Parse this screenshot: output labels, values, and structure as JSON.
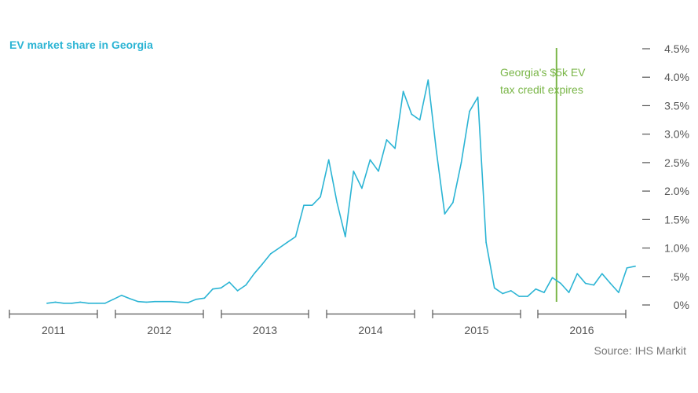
{
  "chart_data": {
    "type": "line",
    "title": "EV market share in Georgia",
    "source": "Source: IHS Markit",
    "ylim": [
      0,
      4.5
    ],
    "y_ticks": [
      {
        "value": 4.5,
        "label": "4.5%"
      },
      {
        "value": 4.0,
        "label": "4.0%"
      },
      {
        "value": 3.5,
        "label": "3.5%"
      },
      {
        "value": 3.0,
        "label": "3.0%"
      },
      {
        "value": 2.5,
        "label": "2.5%"
      },
      {
        "value": 2.0,
        "label": "2.0%"
      },
      {
        "value": 1.5,
        "label": "1.5%"
      },
      {
        "value": 1.0,
        "label": "1.0%"
      },
      {
        "value": 0.5,
        "label": ".5%"
      },
      {
        "value": 0.0,
        "label": "0%"
      }
    ],
    "years": [
      "2011",
      "2012",
      "2013",
      "2014",
      "2015",
      "2016"
    ],
    "grid": false,
    "line_color": "#2bb4d4",
    "annotation": {
      "x": 61.5,
      "lines": [
        "Georgia's $5k EV",
        "tax credit expires"
      ],
      "color": "#7ab648"
    },
    "series": [
      {
        "x": [
          0,
          1,
          2,
          3,
          4,
          5,
          6,
          7,
          8,
          9,
          10,
          11,
          12,
          13,
          14,
          15,
          16,
          17,
          18,
          19,
          20,
          21,
          22,
          23,
          24,
          25,
          26,
          27,
          28,
          29,
          30,
          31,
          32,
          33,
          34,
          35,
          36,
          37,
          38,
          39,
          40,
          41,
          42,
          43,
          44,
          45,
          46,
          47,
          48,
          49,
          50,
          51,
          52,
          53,
          54,
          55,
          56,
          57,
          58,
          59,
          60,
          61,
          62,
          63,
          64,
          65,
          66,
          67,
          68,
          69,
          70,
          71
        ],
        "values": [
          0.03,
          0.05,
          0.03,
          0.03,
          0.05,
          0.03,
          0.03,
          0.03,
          0.1,
          0.17,
          0.11,
          0.06,
          0.05,
          0.06,
          0.06,
          0.06,
          0.05,
          0.04,
          0.1,
          0.12,
          0.28,
          0.3,
          0.4,
          0.25,
          0.35,
          0.55,
          0.72,
          0.9,
          1.0,
          1.1,
          1.2,
          1.75,
          1.75,
          1.9,
          2.55,
          1.8,
          1.2,
          2.35,
          2.05,
          2.55,
          2.35,
          2.9,
          2.75,
          3.75,
          3.35,
          3.25,
          3.95,
          2.7,
          1.6,
          1.8,
          2.5,
          3.4,
          3.65,
          1.1,
          0.3,
          0.2,
          0.25,
          0.15,
          0.15,
          0.28,
          0.22,
          0.48,
          0.38,
          0.22,
          0.55,
          0.38,
          0.35,
          0.55,
          0.38,
          0.22,
          0.65,
          0.68
        ]
      }
    ]
  }
}
